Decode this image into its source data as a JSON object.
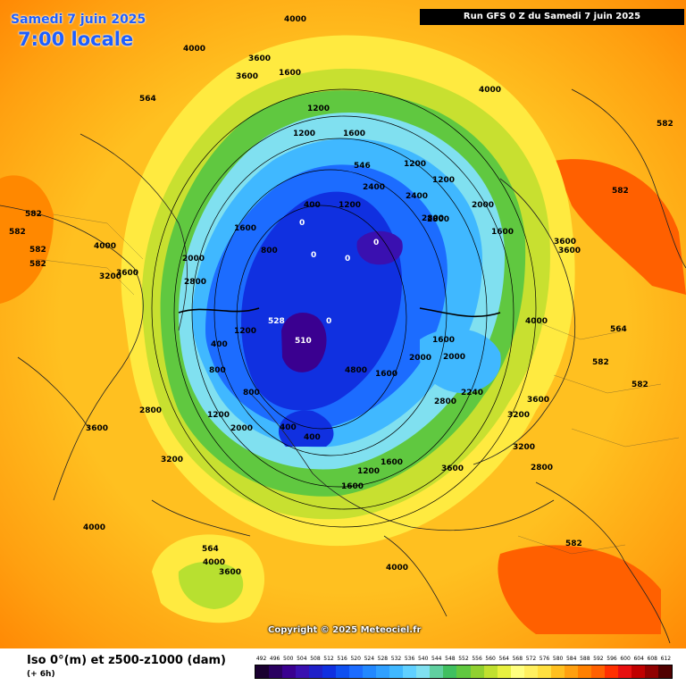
{
  "header": {
    "date": "Samedi 7 juin 2025",
    "time": "7:00 locale",
    "run": "Run GFS 0 Z du Samedi 7 juin 2025"
  },
  "footer": {
    "copyright": "Copyright © 2025 Meteociel.fr"
  },
  "legend": {
    "title": "Iso 0°(m) et z500-z1000 (dam)",
    "subtitle": "(+ 6h)",
    "values": [
      "492",
      "496",
      "500",
      "504",
      "508",
      "512",
      "516",
      "520",
      "524",
      "528",
      "532",
      "536",
      "540",
      "544",
      "548",
      "552",
      "556",
      "560",
      "564",
      "568",
      "572",
      "576",
      "580",
      "584",
      "588",
      "592",
      "596",
      "600",
      "604",
      "608",
      "612"
    ],
    "colors": [
      "#1a0030",
      "#2a0060",
      "#3a0090",
      "#3a10b0",
      "#2020c8",
      "#1030e0",
      "#1050f0",
      "#1c6cff",
      "#2288ff",
      "#30a0ff",
      "#40b8ff",
      "#60d0ff",
      "#80e0f0",
      "#60d0a0",
      "#40c060",
      "#60c840",
      "#90d030",
      "#c0e030",
      "#e8f040",
      "#ffff80",
      "#fff060",
      "#ffe040",
      "#ffc020",
      "#ffa010",
      "#ff8000",
      "#ff6000",
      "#ff3000",
      "#e81010",
      "#c00000",
      "#900000",
      "#500000"
    ]
  },
  "map": {
    "labels": [
      {
        "text": "4000"
      },
      {
        "text": "3600"
      },
      {
        "text": "4000"
      },
      {
        "text": "3600"
      },
      {
        "text": "564"
      },
      {
        "text": "4000"
      },
      {
        "text": "1600"
      },
      {
        "text": "1200"
      },
      {
        "text": "1200"
      },
      {
        "text": "1600"
      },
      {
        "text": "1200"
      },
      {
        "text": "2400"
      },
      {
        "text": "2400"
      },
      {
        "text": "1200"
      },
      {
        "text": "2800"
      },
      {
        "text": "2000"
      },
      {
        "text": "1600"
      },
      {
        "text": "1200"
      },
      {
        "text": "800"
      },
      {
        "text": "400"
      },
      {
        "text": "0"
      },
      {
        "text": "0"
      },
      {
        "text": "0"
      },
      {
        "text": "0"
      },
      {
        "text": "0"
      },
      {
        "text": "528"
      },
      {
        "text": "510"
      },
      {
        "text": "4800"
      },
      {
        "text": "1600"
      },
      {
        "text": "2000"
      },
      {
        "text": "2240"
      },
      {
        "text": "2800"
      },
      {
        "text": "3200"
      },
      {
        "text": "3600"
      },
      {
        "text": "3600"
      },
      {
        "text": "3200"
      },
      {
        "text": "2800"
      },
      {
        "text": "1200"
      },
      {
        "text": "1600"
      },
      {
        "text": "2000"
      },
      {
        "text": "400"
      },
      {
        "text": "1200"
      },
      {
        "text": "800"
      },
      {
        "text": "400"
      },
      {
        "text": "2800"
      },
      {
        "text": "3200"
      },
      {
        "text": "3600"
      },
      {
        "text": "4000"
      },
      {
        "text": "582"
      },
      {
        "text": "582"
      },
      {
        "text": "582"
      },
      {
        "text": "582"
      },
      {
        "text": "582"
      },
      {
        "text": "582"
      },
      {
        "text": "582"
      },
      {
        "text": "582"
      },
      {
        "text": "582"
      },
      {
        "text": "564"
      },
      {
        "text": "564"
      },
      {
        "text": "4000"
      },
      {
        "text": "3600"
      },
      {
        "text": "4000"
      },
      {
        "text": "2000"
      },
      {
        "text": "2800"
      },
      {
        "text": "3600"
      },
      {
        "text": "3200"
      },
      {
        "text": "2800"
      },
      {
        "text": "4000"
      },
      {
        "text": "3600"
      },
      {
        "text": "1600"
      },
      {
        "text": "3600"
      },
      {
        "text": "1600"
      },
      {
        "text": "546"
      },
      {
        "text": "400"
      },
      {
        "text": "800"
      },
      {
        "text": "1200"
      },
      {
        "text": "2000"
      },
      {
        "text": "1600"
      },
      {
        "text": "4000"
      }
    ]
  }
}
